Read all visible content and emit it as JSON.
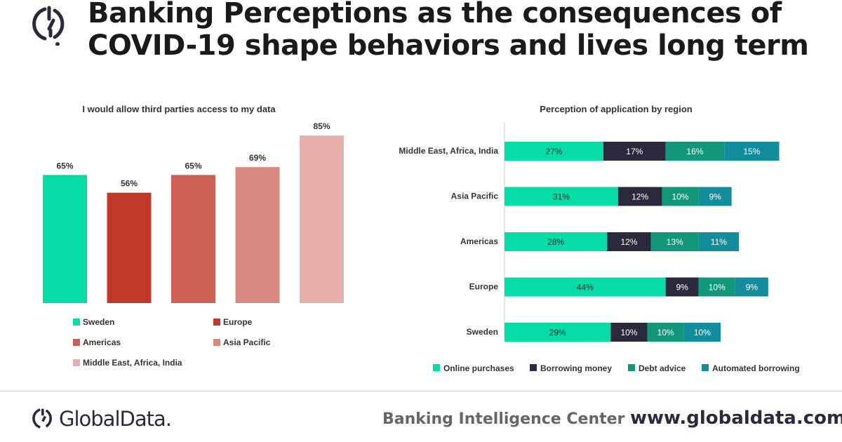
{
  "header": {
    "title_line1": "Banking Perceptions as the consequences of",
    "title_line2": "COVID-19 shape behaviors and lives long term"
  },
  "footer": {
    "brand": "GlobalData.",
    "center": "Banking Intelligence Center",
    "url": "www.globaldata.com"
  },
  "chart_data": [
    {
      "type": "bar",
      "title": "I would allow third parties access to my data",
      "categories": [
        "Sweden",
        "Europe",
        "Americas",
        "Asia Pacific",
        "Middle East, Africa, India"
      ],
      "values": [
        65,
        56,
        65,
        69,
        85
      ],
      "data_labels": [
        "65%",
        "56%",
        "65%",
        "69%",
        "85%"
      ],
      "colors": [
        "#05dca6",
        "#c0392b",
        "#cd6155",
        "#d98880",
        "#e6b0aa"
      ],
      "ylim": [
        0,
        100
      ],
      "grid": false,
      "legend": "bottom"
    },
    {
      "type": "bar",
      "orientation": "horizontal",
      "stacked": true,
      "title": "Perception of application by region",
      "categories": [
        "Middle East, Africa, India",
        "Asia Pacific",
        "Americas",
        "Europe",
        "Sweden"
      ],
      "series": [
        {
          "name": "Online purchases",
          "color": "#05dca6",
          "values": [
            27,
            31,
            28,
            44,
            29
          ]
        },
        {
          "name": "Borrowing money",
          "color": "#2b2a3d",
          "values": [
            17,
            12,
            12,
            9,
            10
          ]
        },
        {
          "name": "Debt advice",
          "color": "#13977a",
          "values": [
            16,
            10,
            13,
            10,
            10
          ]
        },
        {
          "name": "Automated borrowing",
          "color": "#138c9c",
          "values": [
            15,
            9,
            11,
            9,
            10
          ]
        }
      ],
      "grid": false,
      "legend": "bottom"
    }
  ]
}
